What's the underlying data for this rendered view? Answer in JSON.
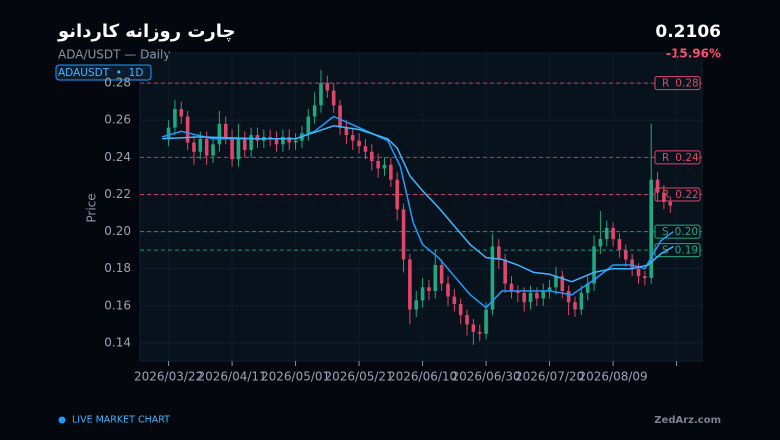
{
  "header": {
    "title": "چارت روزانه کاردانو",
    "subtitle": "ADA/USDT — Daily",
    "badge": "ADAUSDT  •  1D",
    "price": 0.2106,
    "change": {
      "value": -15.96,
      "label": "-15.96%"
    }
  },
  "footer": {
    "live": "LIVE MARKET CHART",
    "brand": "ZedArz.com"
  },
  "chart_data": {
    "type": "candlestick",
    "ylabel": "Price",
    "up_color": "#1fa882",
    "down_color": "#e0456a",
    "xlim": [
      "2026/03/13",
      "2026/09/06"
    ],
    "xticks": [
      "2026/03/22",
      "2026/04/11",
      "2026/05/01",
      "2026/05/21",
      "2026/06/10",
      "2026/06/30",
      "2026/07/20",
      "2026/08/09",
      {
        "value": "2026/08/29",
        "label": null
      }
    ],
    "ylim": [
      0.1303,
      0.2962
    ],
    "yticks": [
      0.14,
      0.16,
      0.18,
      {
        "value": 0.2,
        "label": "0.20"
      },
      0.22,
      0.24,
      0.26,
      0.28
    ],
    "grid": true,
    "x": [
      "2026/03/22",
      "2026/03/24",
      "2026/03/26",
      "2026/03/28",
      "2026/03/30",
      "2026/04/01",
      "2026/04/03",
      "2026/04/05",
      "2026/04/07",
      "2026/04/09",
      "2026/04/11",
      "2026/04/13",
      "2026/04/15",
      "2026/04/17",
      "2026/04/19",
      "2026/04/21",
      "2026/04/23",
      "2026/04/25",
      "2026/04/27",
      "2026/04/29",
      "2026/05/01",
      "2026/05/03",
      "2026/05/05",
      "2026/05/07",
      "2026/05/09",
      "2026/05/11",
      "2026/05/13",
      "2026/05/15",
      "2026/05/17",
      "2026/05/19",
      "2026/05/21",
      "2026/05/23",
      "2026/05/25",
      "2026/05/27",
      "2026/05/29",
      "2026/05/31",
      "2026/06/02",
      "2026/06/04",
      "2026/06/06",
      "2026/06/08",
      "2026/06/10",
      "2026/06/12",
      "2026/06/14",
      "2026/06/16",
      "2026/06/18",
      "2026/06/20",
      "2026/06/22",
      "2026/06/24",
      "2026/06/26",
      "2026/06/28",
      "2026/06/30",
      "2026/07/02",
      "2026/07/04",
      "2026/07/06",
      "2026/07/08",
      "2026/07/10",
      "2026/07/12",
      "2026/07/14",
      "2026/07/16",
      "2026/07/18",
      "2026/07/20",
      "2026/07/22",
      "2026/07/24",
      "2026/07/26",
      "2026/07/28",
      "2026/07/30",
      "2026/08/01",
      "2026/08/03",
      "2026/08/05",
      "2026/08/07",
      "2026/08/09",
      "2026/08/11",
      "2026/08/13",
      "2026/08/15",
      "2026/08/17",
      "2026/08/19",
      "2026/08/21",
      "2026/08/23",
      "2026/08/25",
      "2026/08/27"
    ],
    "open": [
      0.25,
      0.256,
      0.266,
      0.262,
      0.248,
      0.243,
      0.25,
      0.241,
      0.247,
      0.258,
      0.251,
      0.239,
      0.25,
      0.244,
      0.252,
      0.249,
      0.251,
      0.25,
      0.247,
      0.251,
      0.248,
      0.249,
      0.253,
      0.262,
      0.268,
      0.28,
      0.276,
      0.268,
      0.256,
      0.252,
      0.249,
      0.246,
      0.243,
      0.238,
      0.234,
      0.236,
      0.228,
      0.212,
      0.185,
      0.158,
      0.163,
      0.17,
      0.168,
      0.182,
      0.172,
      0.165,
      0.161,
      0.155,
      0.15,
      0.146,
      0.145,
      0.158,
      0.192,
      0.185,
      0.172,
      0.168,
      0.167,
      0.162,
      0.167,
      0.164,
      0.168,
      0.17,
      0.176,
      0.168,
      0.162,
      0.158,
      0.167,
      0.172,
      0.192,
      0.196,
      0.202,
      0.196,
      0.19,
      0.185,
      0.18,
      0.176,
      0.175,
      0.228,
      0.221,
      0.216
    ],
    "high": [
      0.26,
      0.271,
      0.27,
      0.265,
      0.252,
      0.254,
      0.254,
      0.251,
      0.265,
      0.262,
      0.255,
      0.258,
      0.254,
      0.256,
      0.256,
      0.255,
      0.255,
      0.254,
      0.255,
      0.255,
      0.253,
      0.257,
      0.266,
      0.275,
      0.287,
      0.284,
      0.28,
      0.271,
      0.26,
      0.256,
      0.253,
      0.25,
      0.247,
      0.242,
      0.24,
      0.24,
      0.232,
      0.215,
      0.188,
      0.168,
      0.175,
      0.174,
      0.19,
      0.185,
      0.176,
      0.169,
      0.164,
      0.158,
      0.153,
      0.15,
      0.162,
      0.199,
      0.196,
      0.188,
      0.176,
      0.171,
      0.17,
      0.171,
      0.17,
      0.172,
      0.174,
      0.181,
      0.179,
      0.171,
      0.165,
      0.171,
      0.176,
      0.198,
      0.211,
      0.206,
      0.205,
      0.199,
      0.193,
      0.188,
      0.183,
      0.179,
      0.258,
      0.232,
      0.225,
      0.219
    ],
    "low": [
      0.246,
      0.252,
      0.258,
      0.244,
      0.236,
      0.239,
      0.236,
      0.237,
      0.243,
      0.247,
      0.235,
      0.235,
      0.24,
      0.24,
      0.245,
      0.245,
      0.246,
      0.243,
      0.243,
      0.244,
      0.244,
      0.245,
      0.249,
      0.258,
      0.264,
      0.272,
      0.264,
      0.252,
      0.247,
      0.244,
      0.242,
      0.239,
      0.233,
      0.229,
      0.23,
      0.224,
      0.206,
      0.178,
      0.15,
      0.154,
      0.159,
      0.163,
      0.164,
      0.168,
      0.16,
      0.157,
      0.15,
      0.144,
      0.139,
      0.141,
      0.142,
      0.155,
      0.18,
      0.167,
      0.164,
      0.162,
      0.157,
      0.158,
      0.16,
      0.16,
      0.164,
      0.166,
      0.164,
      0.155,
      0.154,
      0.155,
      0.163,
      0.168,
      0.188,
      0.192,
      0.192,
      0.186,
      0.181,
      0.176,
      0.172,
      0.171,
      0.172,
      0.216,
      0.212,
      0.21
    ],
    "close": [
      0.256,
      0.266,
      0.262,
      0.248,
      0.243,
      0.25,
      0.241,
      0.247,
      0.258,
      0.251,
      0.239,
      0.25,
      0.244,
      0.252,
      0.249,
      0.251,
      0.25,
      0.247,
      0.251,
      0.248,
      0.249,
      0.253,
      0.262,
      0.268,
      0.28,
      0.276,
      0.268,
      0.256,
      0.252,
      0.249,
      0.246,
      0.243,
      0.238,
      0.234,
      0.236,
      0.228,
      0.212,
      0.185,
      0.158,
      0.163,
      0.17,
      0.168,
      0.182,
      0.172,
      0.165,
      0.161,
      0.155,
      0.15,
      0.146,
      0.145,
      0.158,
      0.192,
      0.185,
      0.172,
      0.168,
      0.167,
      0.162,
      0.167,
      0.164,
      0.168,
      0.17,
      0.176,
      0.168,
      0.162,
      0.158,
      0.167,
      0.172,
      0.192,
      0.196,
      0.202,
      0.196,
      0.19,
      0.185,
      0.18,
      0.176,
      0.175,
      0.228,
      0.221,
      0.216,
      0.214
    ],
    "lines": [
      {
        "color": "#1e9bff",
        "x": [
          "2026/03/20",
          "2026/03/26",
          "2026/04/05",
          "2026/04/20",
          "2026/05/01",
          "2026/05/07",
          "2026/05/13",
          "2026/05/21",
          "2026/05/30",
          "2026/06/03",
          "2026/06/07",
          "2026/06/10",
          "2026/06/15",
          "2026/06/20",
          "2026/06/25",
          "2026/06/30",
          "2026/07/05",
          "2026/07/10",
          "2026/07/20",
          "2026/07/27",
          "2026/08/03",
          "2026/08/09",
          "2026/08/15",
          "2026/08/19",
          "2026/08/24",
          "2026/08/28"
        ],
        "values": [
          0.251,
          0.254,
          0.25,
          0.25,
          0.25,
          0.254,
          0.262,
          0.256,
          0.249,
          0.235,
          0.205,
          0.193,
          0.186,
          0.176,
          0.166,
          0.159,
          0.168,
          0.168,
          0.168,
          0.166,
          0.174,
          0.182,
          0.182,
          0.18,
          0.195,
          0.2
        ]
      },
      {
        "color": "#3fb6ff",
        "x": [
          "2026/03/20",
          "2026/04/01",
          "2026/04/20",
          "2026/05/01",
          "2026/05/13",
          "2026/05/21",
          "2026/05/30",
          "2026/06/02",
          "2026/06/06",
          "2026/06/10",
          "2026/06/15",
          "2026/06/20",
          "2026/06/25",
          "2026/06/30",
          "2026/07/05",
          "2026/07/10",
          "2026/07/15",
          "2026/07/20",
          "2026/07/27",
          "2026/08/03",
          "2026/08/09",
          "2026/08/15",
          "2026/08/20",
          "2026/08/24",
          "2026/08/28"
        ],
        "values": [
          0.25,
          0.251,
          0.25,
          0.25,
          0.257,
          0.255,
          0.25,
          0.245,
          0.23,
          0.222,
          0.213,
          0.203,
          0.193,
          0.186,
          0.185,
          0.182,
          0.178,
          0.177,
          0.173,
          0.178,
          0.18,
          0.18,
          0.182,
          0.188,
          0.192
        ]
      }
    ],
    "levels": [
      {
        "kind": "R",
        "value": 0.28,
        "color": "#e0456a"
      },
      {
        "kind": "R",
        "value": 0.24,
        "color": "#e0456a"
      },
      {
        "kind": "R",
        "value": 0.22,
        "color": "#e0456a"
      },
      {
        "kind": "S",
        "value": {
          "value": 0.2,
          "label": "0.20"
        },
        "color": "#1fa882"
      },
      {
        "kind": "S",
        "value": 0.19,
        "color": "#1fa882"
      }
    ]
  }
}
